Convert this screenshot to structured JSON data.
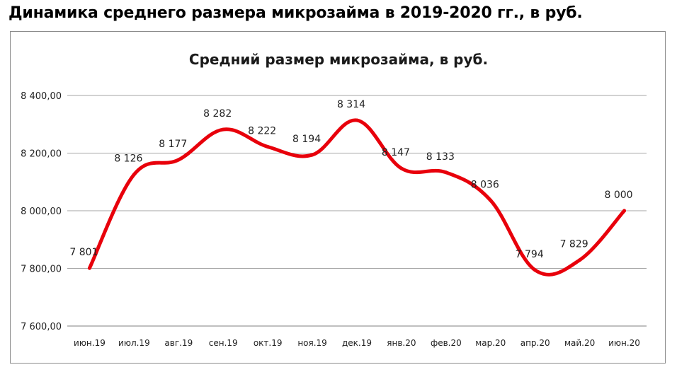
{
  "heading": "Динамика среднего размера микрозайма в 2019-2020 гг., в руб.",
  "chart_data": {
    "type": "line",
    "title": "Средний размер микрозайма, в руб.",
    "xlabel": "",
    "ylabel": "",
    "categories": [
      "июн.19",
      "июл.19",
      "авг.19",
      "сен.19",
      "окт.19",
      "ноя.19",
      "дек.19",
      "янв.20",
      "фев.20",
      "мар.20",
      "апр.20",
      "май.20",
      "июн.20"
    ],
    "values": [
      7801,
      8126,
      8177,
      8282,
      8222,
      8194,
      8314,
      8147,
      8133,
      8036,
      7794,
      7829,
      8000
    ],
    "data_labels": [
      "7 801",
      "8 126",
      "8 177",
      "8 282",
      "8 222",
      "8 194",
      "8 314",
      "8 147",
      "8 133",
      "8 036",
      "7 794",
      "7 829",
      "8 000"
    ],
    "ylim": [
      7600,
      8400
    ],
    "yticks": [
      7600,
      7800,
      8000,
      8200,
      8400
    ],
    "ytick_labels": [
      "7 600,00",
      "7 800,00",
      "8 000,00",
      "8 200,00",
      "8 400,00"
    ],
    "grid": true,
    "legend": "none",
    "smooth": true,
    "line_color": "#e8000b"
  }
}
